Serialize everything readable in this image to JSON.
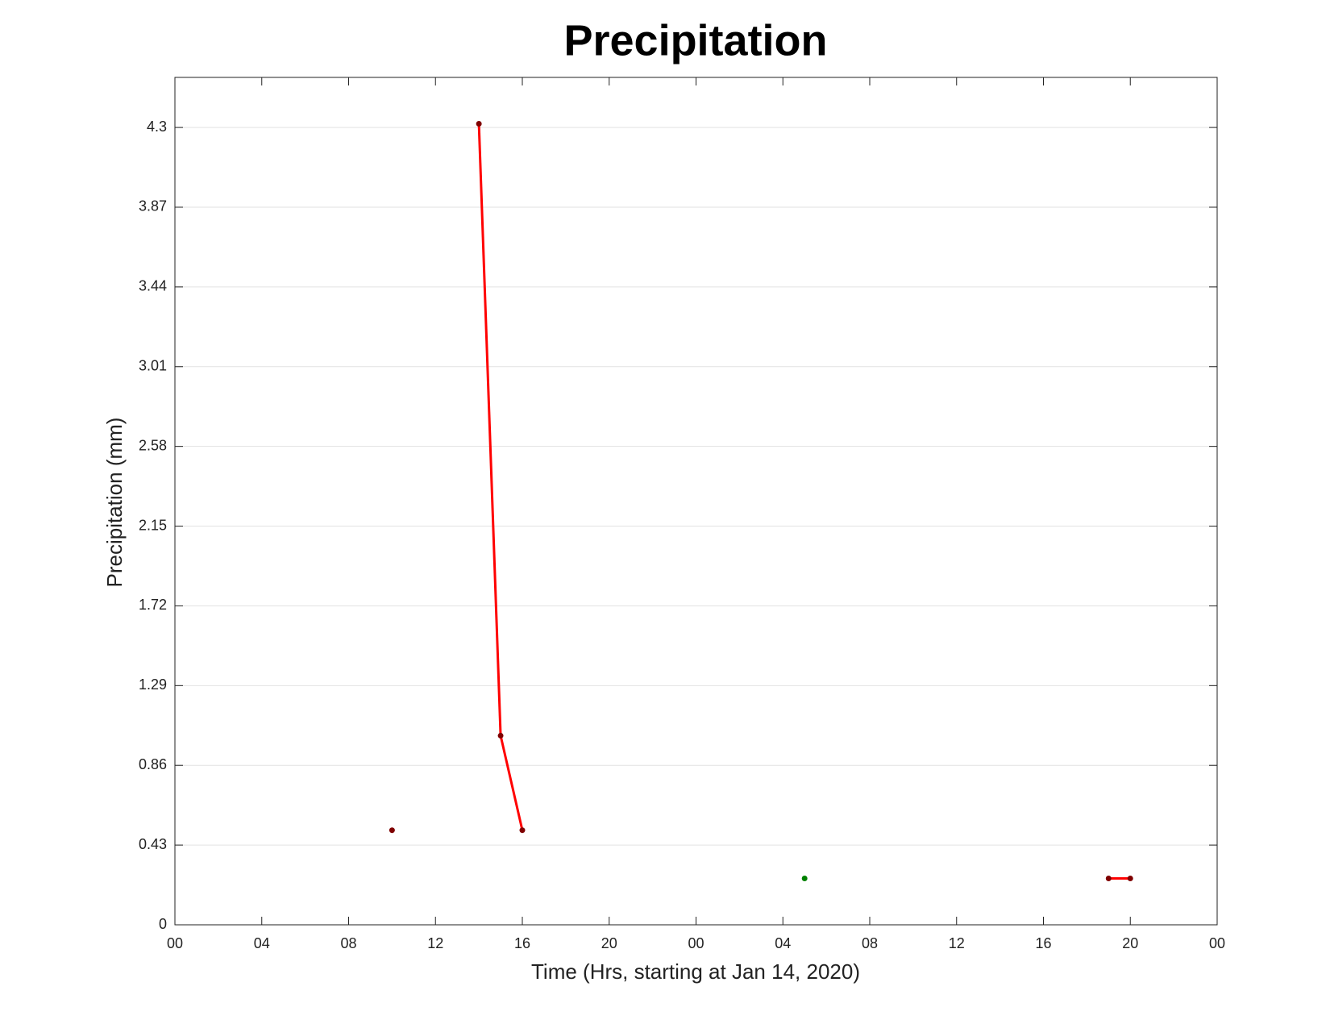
{
  "chart_data": {
    "type": "line",
    "title": "Precipitation",
    "x_label": "Time (Hrs, starting at Jan 14, 2020)",
    "y_label": "Precipitation (mm)",
    "x": [
      10,
      14,
      15,
      16,
      29,
      43,
      44
    ],
    "series": [
      {
        "color": "#ff0000",
        "values": [
          0.51,
          4.32,
          1.02,
          0.51,
          0.25,
          0.25,
          0.25
        ],
        "marker_colors": [
          "#7f0000",
          "#7f0000",
          "#7f0000",
          "#7f0000",
          "#008000",
          "#7f0000",
          "#7f0000"
        ]
      }
    ],
    "xlim": [
      0,
      48
    ],
    "xticks": [
      {
        "value": 0,
        "label": "00"
      },
      {
        "value": 4,
        "label": "04"
      },
      {
        "value": 8,
        "label": "08"
      },
      {
        "value": 12,
        "label": "12"
      },
      {
        "value": 16,
        "label": "16"
      },
      {
        "value": 20,
        "label": "20"
      },
      {
        "value": 24,
        "label": "00"
      },
      {
        "value": 28,
        "label": "04"
      },
      {
        "value": 32,
        "label": "08"
      },
      {
        "value": 36,
        "label": "12"
      },
      {
        "value": 40,
        "label": "16"
      },
      {
        "value": 44,
        "label": "20"
      },
      {
        "value": 48,
        "label": "00"
      }
    ],
    "ylim": [
      0,
      4.57
    ],
    "yticks": [
      0,
      0.43,
      0.86,
      1.29,
      1.72,
      2.15,
      2.58,
      3.01,
      3.44,
      3.87,
      4.3
    ],
    "grid": true
  }
}
